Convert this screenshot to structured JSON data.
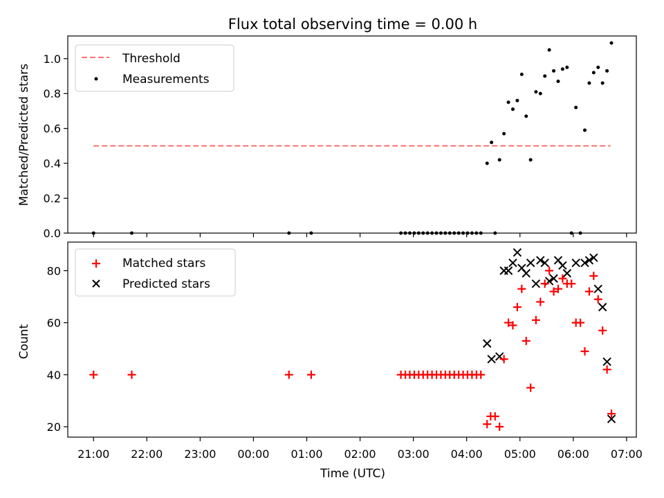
{
  "chart_data": [
    {
      "type": "scatter",
      "title": "Flux total observing time = 0.00 h",
      "xlabel": "",
      "ylabel": "Matched/Predicted stars",
      "ylim": [
        0,
        1.13
      ],
      "yticks": [
        "0.0",
        "0.2",
        "0.4",
        "0.6",
        "0.8",
        "1.0"
      ],
      "grid": false,
      "legend_position": "upper-left",
      "threshold": {
        "name": "Threshold",
        "value": 0.5,
        "x_start": "21:00",
        "x_end": "06:42",
        "color": "#ff7070"
      },
      "series": [
        {
          "name": "Measurements",
          "color": "#000000",
          "points": [
            [
              "21:00",
              0
            ],
            [
              "21:43",
              0
            ],
            [
              "00:40",
              0
            ],
            [
              "01:05",
              0
            ],
            [
              "02:46",
              0
            ],
            [
              "02:51",
              0
            ],
            [
              "02:56",
              0
            ],
            [
              "03:01",
              0
            ],
            [
              "03:06",
              0
            ],
            [
              "03:11",
              0
            ],
            [
              "03:16",
              0
            ],
            [
              "03:21",
              0
            ],
            [
              "03:26",
              0
            ],
            [
              "03:31",
              0
            ],
            [
              "03:36",
              0
            ],
            [
              "03:41",
              0
            ],
            [
              "03:46",
              0
            ],
            [
              "03:51",
              0
            ],
            [
              "03:56",
              0
            ],
            [
              "04:01",
              0
            ],
            [
              "04:06",
              0
            ],
            [
              "04:11",
              0
            ],
            [
              "04:16",
              0
            ],
            [
              "04:23",
              0.4
            ],
            [
              "04:28",
              0.52
            ],
            [
              "04:32",
              0
            ],
            [
              "04:37",
              0.42
            ],
            [
              "04:42",
              0.57
            ],
            [
              "04:47",
              0.75
            ],
            [
              "04:52",
              0.71
            ],
            [
              "04:57",
              0.76
            ],
            [
              "05:02",
              0.91
            ],
            [
              "05:07",
              0.67
            ],
            [
              "05:12",
              0.42
            ],
            [
              "05:18",
              0.81
            ],
            [
              "05:23",
              0.8
            ],
            [
              "05:28",
              0.9
            ],
            [
              "05:33",
              1.05
            ],
            [
              "05:38",
              0.93
            ],
            [
              "05:43",
              0.87
            ],
            [
              "05:48",
              0.94
            ],
            [
              "05:53",
              0.95
            ],
            [
              "05:58",
              0
            ],
            [
              "06:03",
              0.72
            ],
            [
              "06:08",
              0
            ],
            [
              "06:13",
              0.59
            ],
            [
              "06:18",
              0.86
            ],
            [
              "06:23",
              0.92
            ],
            [
              "06:28",
              0.95
            ],
            [
              "06:33",
              0.86
            ],
            [
              "06:38",
              0.93
            ],
            [
              "06:43",
              1.09
            ]
          ]
        }
      ]
    },
    {
      "type": "scatter",
      "title": "",
      "xlabel": "Time (UTC)",
      "ylabel": "Count",
      "ylim": [
        16,
        91
      ],
      "yticks": [
        "20",
        "40",
        "60",
        "80"
      ],
      "xticks": [
        "21:00",
        "22:00",
        "23:00",
        "00:00",
        "01:00",
        "02:00",
        "03:00",
        "04:00",
        "05:00",
        "06:00",
        "07:00"
      ],
      "grid": false,
      "legend_position": "upper-left",
      "series": [
        {
          "name": "Matched stars",
          "marker": "plus",
          "color": "#ff0000",
          "points": [
            [
              "21:00",
              40
            ],
            [
              "21:43",
              40
            ],
            [
              "00:40",
              40
            ],
            [
              "01:05",
              40
            ],
            [
              "02:46",
              40
            ],
            [
              "02:51",
              40
            ],
            [
              "02:56",
              40
            ],
            [
              "03:01",
              40
            ],
            [
              "03:06",
              40
            ],
            [
              "03:11",
              40
            ],
            [
              "03:16",
              40
            ],
            [
              "03:21",
              40
            ],
            [
              "03:26",
              40
            ],
            [
              "03:31",
              40
            ],
            [
              "03:36",
              40
            ],
            [
              "03:41",
              40
            ],
            [
              "03:46",
              40
            ],
            [
              "03:51",
              40
            ],
            [
              "03:56",
              40
            ],
            [
              "04:01",
              40
            ],
            [
              "04:06",
              40
            ],
            [
              "04:11",
              40
            ],
            [
              "04:16",
              40
            ],
            [
              "04:23",
              21
            ],
            [
              "04:27",
              24
            ],
            [
              "04:32",
              24
            ],
            [
              "04:37",
              20
            ],
            [
              "04:42",
              46
            ],
            [
              "04:47",
              60
            ],
            [
              "04:52",
              59
            ],
            [
              "04:57",
              66
            ],
            [
              "05:02",
              73
            ],
            [
              "05:07",
              53
            ],
            [
              "05:12",
              35
            ],
            [
              "05:18",
              61
            ],
            [
              "05:23",
              68
            ],
            [
              "05:28",
              75
            ],
            [
              "05:33",
              80
            ],
            [
              "05:38",
              72
            ],
            [
              "05:43",
              73
            ],
            [
              "05:48",
              77
            ],
            [
              "05:53",
              75
            ],
            [
              "05:58",
              75
            ],
            [
              "06:03",
              60
            ],
            [
              "06:08",
              60
            ],
            [
              "06:13",
              49
            ],
            [
              "06:18",
              72
            ],
            [
              "06:23",
              78
            ],
            [
              "06:28",
              69
            ],
            [
              "06:33",
              57
            ],
            [
              "06:38",
              42
            ],
            [
              "06:43",
              25
            ]
          ]
        },
        {
          "name": "Predicted stars",
          "marker": "x",
          "color": "#000000",
          "points": [
            [
              "04:23",
              52
            ],
            [
              "04:28",
              46
            ],
            [
              "04:37",
              47
            ],
            [
              "04:42",
              80
            ],
            [
              "04:47",
              80
            ],
            [
              "04:52",
              83
            ],
            [
              "04:57",
              87
            ],
            [
              "05:02",
              81
            ],
            [
              "05:07",
              79
            ],
            [
              "05:12",
              83
            ],
            [
              "05:18",
              75
            ],
            [
              "05:23",
              84
            ],
            [
              "05:28",
              83
            ],
            [
              "05:33",
              76
            ],
            [
              "05:38",
              77
            ],
            [
              "05:43",
              84
            ],
            [
              "05:48",
              82
            ],
            [
              "05:53",
              79
            ],
            [
              "06:03",
              83
            ],
            [
              "06:13",
              83
            ],
            [
              "06:18",
              84
            ],
            [
              "06:23",
              85
            ],
            [
              "06:28",
              73
            ],
            [
              "06:33",
              66
            ],
            [
              "06:38",
              45
            ],
            [
              "06:43",
              23
            ]
          ]
        }
      ]
    }
  ]
}
